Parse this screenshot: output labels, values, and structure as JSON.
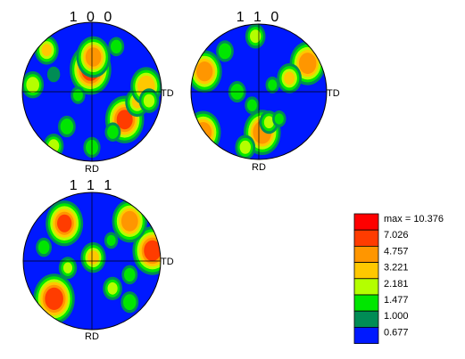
{
  "chart_data": [
    {
      "type": "heatmap",
      "title": "1 0 0",
      "rd_label": "RD",
      "td_label": "TD",
      "background_color": "#0019ff",
      "peaks": [
        {
          "rd": -0.32,
          "td": -0.02,
          "intensity": 10.2
        },
        {
          "rd": -0.5,
          "td": 0.02,
          "intensity": 5.4
        },
        {
          "rd": 0.4,
          "td": 0.47,
          "intensity": 8.2
        },
        {
          "rd": 0.15,
          "td": 0.65,
          "intensity": 3.6
        },
        {
          "rd": 0.5,
          "td": -0.36,
          "intensity": 2.1
        },
        {
          "rd": -0.08,
          "td": 0.78,
          "intensity": 4.3
        },
        {
          "rd": 0.13,
          "td": 0.82,
          "intensity": 2.6
        },
        {
          "rd": -0.1,
          "td": -0.85,
          "intensity": 3.1
        },
        {
          "rd": 0.8,
          "td": 0.0,
          "intensity": 2.0
        },
        {
          "rd": 0.58,
          "td": 0.3,
          "intensity": 1.8
        },
        {
          "rd": 0.78,
          "td": -0.55,
          "intensity": 2.6
        },
        {
          "rd": -0.6,
          "td": -0.65,
          "intensity": 3.6
        },
        {
          "rd": -0.65,
          "td": 0.35,
          "intensity": 1.8
        },
        {
          "rd": -0.25,
          "td": -0.55,
          "intensity": 1.4
        },
        {
          "rd": 0.05,
          "td": -0.2,
          "intensity": 1.6
        }
      ]
    },
    {
      "type": "heatmap",
      "title": "1 1 0",
      "rd_label": "RD",
      "td_label": "TD",
      "background_color": "#0019ff",
      "peaks": [
        {
          "rd": 0.6,
          "td": 0.05,
          "intensity": 7.0
        },
        {
          "rd": 0.6,
          "td": -0.82,
          "intensity": 6.0
        },
        {
          "rd": -0.3,
          "td": -0.8,
          "intensity": 5.7
        },
        {
          "rd": -0.42,
          "td": 0.72,
          "intensity": 6.3
        },
        {
          "rd": -0.2,
          "td": 0.45,
          "intensity": 3.8
        },
        {
          "rd": 0.0,
          "td": -0.32,
          "intensity": 2.1
        },
        {
          "rd": 0.45,
          "td": 0.15,
          "intensity": 2.4
        },
        {
          "rd": -0.6,
          "td": -0.5,
          "intensity": 2.1
        },
        {
          "rd": 0.82,
          "td": -0.2,
          "intensity": 2.6
        },
        {
          "rd": -0.82,
          "td": -0.05,
          "intensity": 2.6
        },
        {
          "rd": 0.2,
          "td": -0.1,
          "intensity": 1.6
        },
        {
          "rd": -0.1,
          "td": 0.2,
          "intensity": 1.5
        },
        {
          "rd": 0.4,
          "td": 0.3,
          "intensity": 1.5
        }
      ]
    },
    {
      "type": "heatmap",
      "title": "1 1 1",
      "rd_label": "RD",
      "td_label": "TD",
      "background_color": "#0019ff",
      "peaks": [
        {
          "rd": 0.55,
          "td": -0.55,
          "intensity": 10.0
        },
        {
          "rd": -0.15,
          "td": 0.88,
          "intensity": 8.9
        },
        {
          "rd": -0.55,
          "td": -0.4,
          "intensity": 7.2
        },
        {
          "rd": -0.58,
          "td": 0.55,
          "intensity": 5.9
        },
        {
          "rd": -0.05,
          "td": 0.02,
          "intensity": 4.0
        },
        {
          "rd": 0.4,
          "td": 0.3,
          "intensity": 2.4
        },
        {
          "rd": 0.6,
          "td": 0.55,
          "intensity": 2.1
        },
        {
          "rd": 0.1,
          "td": -0.35,
          "intensity": 2.2
        },
        {
          "rd": -0.2,
          "td": -0.7,
          "intensity": 1.8
        },
        {
          "rd": 0.2,
          "td": 0.55,
          "intensity": 1.8
        },
        {
          "rd": -0.3,
          "td": 0.28,
          "intensity": 1.5
        }
      ]
    }
  ],
  "legend": {
    "entries": [
      {
        "label": "max = 10.376",
        "color": "#ff0000"
      },
      {
        "label": "7.026",
        "color": "#ff3c00"
      },
      {
        "label": "4.757",
        "color": "#ff9600"
      },
      {
        "label": "3.221",
        "color": "#ffc800"
      },
      {
        "label": "2.181",
        "color": "#b4ff00"
      },
      {
        "label": "1.477",
        "color": "#00e600"
      },
      {
        "label": "1.000",
        "color": "#008c55"
      },
      {
        "label": "0.677",
        "color": "#0019ff"
      }
    ]
  }
}
